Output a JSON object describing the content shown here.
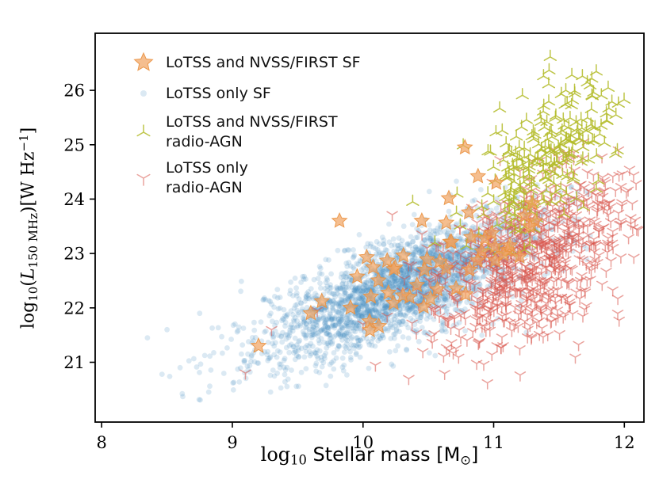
{
  "chart_data": {
    "type": "scatter",
    "title": "",
    "background": "#ffffff",
    "axis_color": "#000000",
    "xlim": [
      7.95,
      12.15
    ],
    "ylim": [
      19.9,
      27.05
    ],
    "x_ticks": [
      8,
      9,
      10,
      11,
      12
    ],
    "y_ticks": [
      21,
      22,
      23,
      24,
      25,
      26
    ],
    "grid": false,
    "legend_position": "upper-left",
    "xlabel_parts": [
      {
        "t": "log",
        "s": "rm"
      },
      {
        "t": "10",
        "s": "sub rm"
      },
      {
        "t": " Stellar mass ",
        "s": "sans"
      },
      {
        "t": "[M",
        "s": "sans"
      },
      {
        "t": "⊙",
        "s": "sub sans"
      },
      {
        "t": "]",
        "s": "sans"
      }
    ],
    "ylabel_parts": [
      {
        "t": "log",
        "s": "rm"
      },
      {
        "t": "10",
        "s": "sub rm"
      },
      {
        "t": "(",
        "s": "rm"
      },
      {
        "t": "L",
        "s": "it"
      },
      {
        "t": "150 MHz",
        "s": "sub rm"
      },
      {
        "t": ")[W Hz",
        "s": "rm"
      },
      {
        "t": "−1",
        "s": "sup rm"
      },
      {
        "t": "]",
        "s": "rm"
      }
    ],
    "draw_order": [
      1,
      3,
      2,
      0
    ],
    "series": [
      {
        "name": "lotss-and-nvss-first-sf",
        "label": "LoTSS and NVSS/FIRST SF",
        "marker": "star",
        "color": "#f1a35f",
        "edge": "#ea9140",
        "opacity": 0.7,
        "size": 6.5,
        "seed": 7,
        "dist": {
          "count": 48,
          "x_mean": 10.6,
          "x_sd": 0.45,
          "x_min": 9.15,
          "x_max": 11.35,
          "slope": 1.0,
          "y_at_mean": 22.75,
          "y_sd": 0.4,
          "y_min": 21.1,
          "y_max": 24.1
        },
        "extra_points": [
          [
            9.2,
            21.3
          ],
          [
            9.82,
            23.6
          ],
          [
            10.45,
            23.6
          ],
          [
            10.88,
            24.42
          ],
          [
            10.78,
            24.95
          ],
          [
            11.02,
            24.3
          ],
          [
            9.6,
            21.9
          ],
          [
            10.05,
            21.75
          ]
        ]
      },
      {
        "name": "lotss-only-sf",
        "label": "LoTSS only SF",
        "marker": "dot",
        "color": "#4a8fc4",
        "opacity": 0.2,
        "size": 3.4,
        "seed": 13,
        "dist": {
          "count": 2700,
          "x_mean": 10.3,
          "x_sd": 0.55,
          "x_min": 8.25,
          "x_max": 11.75,
          "slope": 0.92,
          "y_at_mean": 22.4,
          "y_sd": 0.46,
          "y_min": 20.3,
          "y_max": 24.4
        },
        "extra_points": [
          [
            8.35,
            21.45
          ],
          [
            8.6,
            20.9
          ],
          [
            8.75,
            21.9
          ],
          [
            8.5,
            21.6
          ]
        ]
      },
      {
        "name": "lotss-and-nvss-first-radio-agn",
        "label": "LoTSS and NVSS/FIRST\nradio-AGN",
        "marker": "tri_up",
        "color": "#b3bb28",
        "opacity": 0.85,
        "size": 8.5,
        "seed": 29,
        "dist": {
          "count": 240,
          "x_mean": 11.42,
          "x_sd": 0.28,
          "x_min": 10.3,
          "x_max": 12.0,
          "slope": 1.4,
          "y_at_mean": 24.85,
          "y_sd": 0.6,
          "y_min": 22.9,
          "y_max": 26.65
        },
        "extra_points": [
          [
            10.38,
            23.95
          ],
          [
            10.55,
            23.2
          ],
          [
            10.72,
            24.1
          ]
        ]
      },
      {
        "name": "lotss-only-radio-agn",
        "label": "LoTSS only\nradio-AGN",
        "marker": "tri_down",
        "color": "#d9574f",
        "opacity": 0.55,
        "size": 7.5,
        "seed": 41,
        "dist": {
          "count": 780,
          "x_mean": 11.3,
          "x_sd": 0.42,
          "x_min": 9.9,
          "x_max": 12.12,
          "slope": 1.15,
          "y_at_mean": 22.95,
          "y_sd": 0.72,
          "y_min": 20.55,
          "y_max": 25.6
        },
        "extra_points": [
          [
            9.3,
            21.6
          ],
          [
            9.1,
            20.8
          ],
          [
            9.65,
            21.95
          ],
          [
            10.0,
            21.7
          ],
          [
            10.35,
            20.7
          ],
          [
            12.05,
            23.55
          ],
          [
            11.95,
            21.9
          ]
        ]
      }
    ]
  }
}
